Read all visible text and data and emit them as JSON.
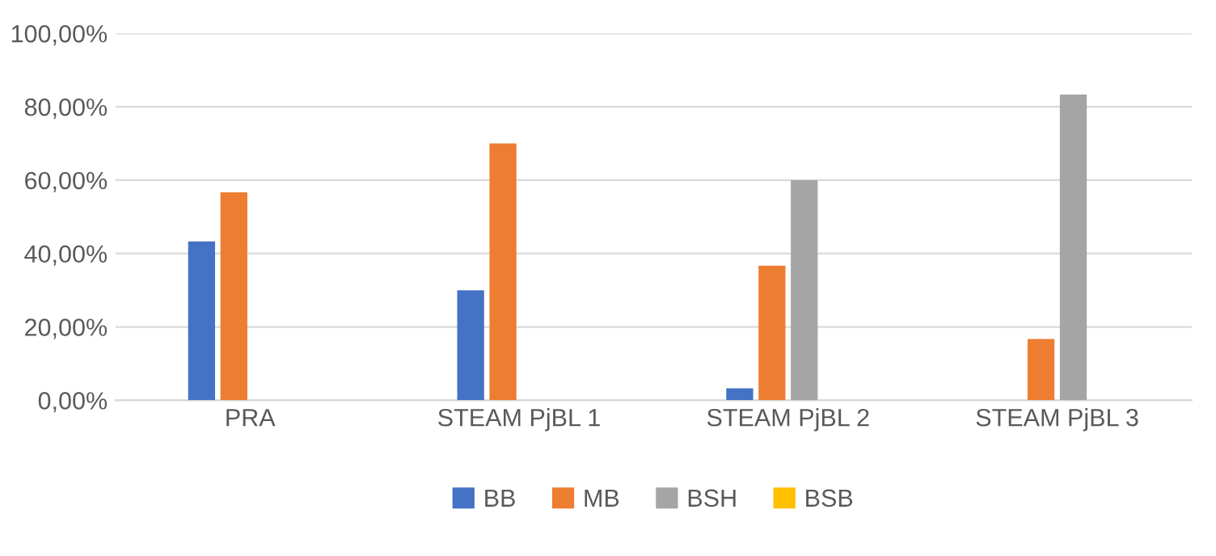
{
  "chart_data": {
    "type": "bar",
    "categories": [
      "PRA",
      "STEAM PjBL 1",
      "STEAM PjBL 2",
      "STEAM PjBL 3"
    ],
    "series": [
      {
        "name": "BB",
        "color": "#4472c4",
        "values": [
          43.3,
          30,
          3.3,
          0
        ]
      },
      {
        "name": "MB",
        "color": "#ed7d31",
        "values": [
          56.7,
          70,
          36.7,
          16.7
        ]
      },
      {
        "name": "BSH",
        "color": "#a5a5a5",
        "values": [
          0,
          0,
          60,
          83.3
        ]
      },
      {
        "name": "BSB",
        "color": "#ffc000",
        "values": [
          0,
          0,
          0,
          0
        ]
      }
    ],
    "ylim": [
      0,
      100
    ],
    "yticks": [
      {
        "value": 0,
        "label": "0,00%"
      },
      {
        "value": 20,
        "label": "20,00%"
      },
      {
        "value": 40,
        "label": "40,00%"
      },
      {
        "value": 60,
        "label": "60,00%"
      },
      {
        "value": 80,
        "label": "80,00%"
      },
      {
        "value": 100,
        "label": "100,00%"
      }
    ],
    "grid": "y",
    "legend": "bottom"
  }
}
